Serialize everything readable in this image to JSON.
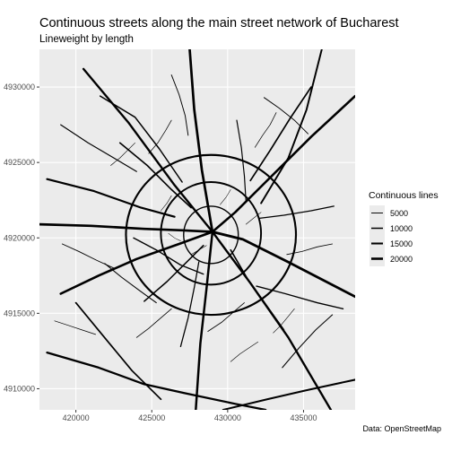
{
  "title": "Continuous streets along the main street network of Bucharest",
  "subtitle": "Lineweight by length",
  "caption": "Data: OpenStreetMap",
  "legend": {
    "title": "Continuous lines",
    "entries": [
      {
        "label": "5000",
        "value": 5000
      },
      {
        "label": "10000",
        "value": 10000
      },
      {
        "label": "15000",
        "value": 15000
      },
      {
        "label": "20000",
        "value": 20000
      }
    ]
  },
  "colors": {
    "panel_background": "#ebebeb",
    "grid_major": "#ffffff",
    "line": "#000000",
    "axis_text": "#4d4d4d"
  },
  "chart_data": {
    "type": "line",
    "x_ticks": [
      420000,
      425000,
      430000,
      435000
    ],
    "x_tick_labels": [
      "420000",
      "425000",
      "430000",
      "435000"
    ],
    "y_ticks": [
      4910000,
      4915000,
      4920000,
      4925000,
      4930000
    ],
    "y_tick_labels": [
      "4910000",
      "4915000",
      "4920000",
      "4925000",
      "4930000"
    ],
    "xlim": [
      417600,
      438400
    ],
    "ylim": [
      4908600,
      4932500
    ],
    "grid": true,
    "legend_position": "right",
    "series_lines": [
      {
        "length": 21000,
        "points": [
          [
            417600,
            4920900
          ],
          [
            421000,
            4920800
          ],
          [
            424500,
            4920600
          ],
          [
            427000,
            4920500
          ],
          [
            429000,
            4920400
          ]
        ]
      },
      {
        "length": 22000,
        "points": [
          [
            429000,
            4920400
          ],
          [
            431000,
            4919900
          ],
          [
            434000,
            4918400
          ],
          [
            438400,
            4916100
          ]
        ]
      },
      {
        "length": 20000,
        "points": [
          [
            419000,
            4916300
          ],
          [
            421500,
            4917500
          ],
          [
            424000,
            4918600
          ],
          [
            426800,
            4919600
          ],
          [
            429000,
            4920400
          ]
        ]
      },
      {
        "length": 20000,
        "points": [
          [
            429000,
            4920400
          ],
          [
            430500,
            4921700
          ],
          [
            432500,
            4923700
          ],
          [
            435500,
            4926700
          ],
          [
            438400,
            4929400
          ]
        ]
      },
      {
        "length": 21000,
        "points": [
          [
            427500,
            4932500
          ],
          [
            427800,
            4928500
          ],
          [
            428300,
            4924500
          ],
          [
            429000,
            4920400
          ]
        ]
      },
      {
        "length": 19000,
        "points": [
          [
            429000,
            4920400
          ],
          [
            428600,
            4916600
          ],
          [
            428200,
            4913000
          ],
          [
            427900,
            4908600
          ]
        ]
      },
      {
        "length": 18000,
        "points": [
          [
            420500,
            4931200
          ],
          [
            423500,
            4927600
          ],
          [
            426500,
            4923500
          ],
          [
            429000,
            4920400
          ]
        ]
      },
      {
        "length": 18000,
        "points": [
          [
            429000,
            4920400
          ],
          [
            431500,
            4917000
          ],
          [
            434000,
            4913400
          ],
          [
            436800,
            4908600
          ]
        ]
      },
      {
        "length": 14000,
        "points": [
          [
            436200,
            4932500
          ],
          [
            435200,
            4928500
          ],
          [
            434000,
            4925300
          ],
          [
            432200,
            4922300
          ]
        ]
      },
      {
        "length": 16000,
        "points": [
          [
            418100,
            4923900
          ],
          [
            421200,
            4923100
          ],
          [
            424300,
            4922000
          ],
          [
            426500,
            4921400
          ]
        ]
      },
      {
        "length": 17000,
        "points": [
          [
            418100,
            4912400
          ],
          [
            421500,
            4911400
          ],
          [
            424500,
            4910300
          ],
          [
            427200,
            4909700
          ],
          [
            430500,
            4909000
          ],
          [
            432500,
            4908600
          ]
        ]
      },
      {
        "length": 15000,
        "points": [
          [
            429700,
            4908600
          ],
          [
            432600,
            4909300
          ],
          [
            435200,
            4909900
          ],
          [
            438400,
            4910600
          ]
        ]
      },
      {
        "length": 12000,
        "points": [
          [
            420000,
            4915700
          ],
          [
            421800,
            4913500
          ],
          [
            423700,
            4911200
          ],
          [
            425600,
            4909300
          ]
        ]
      },
      {
        "length": 12000,
        "points": [
          [
            431500,
            4923800
          ],
          [
            432800,
            4925800
          ],
          [
            434100,
            4927900
          ],
          [
            435500,
            4930000
          ]
        ]
      },
      {
        "length": 11000,
        "points": [
          [
            422900,
            4926300
          ],
          [
            424700,
            4924800
          ],
          [
            426300,
            4923200
          ],
          [
            427600,
            4922000
          ]
        ]
      },
      {
        "length": 11000,
        "points": [
          [
            430200,
            4919200
          ],
          [
            431300,
            4917300
          ],
          [
            432500,
            4915600
          ],
          [
            433700,
            4913900
          ]
        ]
      },
      {
        "length": 10000,
        "points": [
          [
            424500,
            4915800
          ],
          [
            426000,
            4917100
          ],
          [
            427300,
            4918400
          ],
          [
            428400,
            4919500
          ]
        ]
      },
      {
        "length": 10000,
        "points": [
          [
            421600,
            4929400
          ],
          [
            423900,
            4928000
          ],
          [
            425500,
            4925900
          ],
          [
            427000,
            4923700
          ]
        ]
      },
      {
        "length": 9000,
        "points": [
          [
            431900,
            4916800
          ],
          [
            433800,
            4916300
          ],
          [
            435900,
            4915700
          ],
          [
            437600,
            4915300
          ]
        ]
      },
      {
        "length": 9000,
        "points": [
          [
            423800,
            4920000
          ],
          [
            425300,
            4919200
          ],
          [
            426900,
            4918200
          ],
          [
            428400,
            4917600
          ]
        ]
      },
      {
        "length": 8000,
        "points": [
          [
            432100,
            4921300
          ],
          [
            433700,
            4921500
          ],
          [
            435500,
            4921800
          ],
          [
            437000,
            4922100
          ]
        ]
      },
      {
        "length": 8000,
        "points": [
          [
            426900,
            4912800
          ],
          [
            427400,
            4914700
          ],
          [
            427800,
            4916700
          ],
          [
            428100,
            4918400
          ]
        ]
      },
      {
        "length": 7000,
        "points": [
          [
            419000,
            4927500
          ],
          [
            420800,
            4926300
          ],
          [
            422500,
            4925300
          ],
          [
            424000,
            4924400
          ]
        ]
      },
      {
        "length": 7000,
        "points": [
          [
            430600,
            4927800
          ],
          [
            430900,
            4926000
          ],
          [
            431100,
            4924100
          ],
          [
            431200,
            4922500
          ]
        ]
      },
      {
        "length": 6000,
        "points": [
          [
            433600,
            4911400
          ],
          [
            434700,
            4912700
          ],
          [
            435800,
            4913900
          ],
          [
            436900,
            4914900
          ]
        ]
      },
      {
        "length": 6000,
        "points": [
          [
            421900,
            4918300
          ],
          [
            423000,
            4917400
          ],
          [
            424200,
            4916500
          ],
          [
            425300,
            4915700
          ]
        ]
      },
      {
        "length": 5000,
        "points": [
          [
            426300,
            4930800
          ],
          [
            426800,
            4929500
          ],
          [
            427200,
            4928100
          ],
          [
            427400,
            4926800
          ]
        ]
      },
      {
        "length": 5000,
        "points": [
          [
            432400,
            4929300
          ],
          [
            433400,
            4928600
          ],
          [
            434400,
            4927800
          ],
          [
            435300,
            4926900
          ]
        ]
      },
      {
        "length": 5000,
        "points": [
          [
            419100,
            4919600
          ],
          [
            420200,
            4919100
          ],
          [
            421400,
            4918500
          ],
          [
            422500,
            4918000
          ]
        ]
      },
      {
        "length": 4000,
        "points": [
          [
            433900,
            4918900
          ],
          [
            434900,
            4919100
          ],
          [
            435900,
            4919400
          ],
          [
            436900,
            4919600
          ]
        ]
      },
      {
        "length": 4000,
        "points": [
          [
            424000,
            4913400
          ],
          [
            424800,
            4914000
          ],
          [
            425600,
            4914700
          ],
          [
            426300,
            4915300
          ]
        ]
      },
      {
        "length": 4000,
        "points": [
          [
            428700,
            4913800
          ],
          [
            429600,
            4914400
          ],
          [
            430400,
            4915100
          ],
          [
            431100,
            4915700
          ]
        ]
      },
      {
        "length": 3000,
        "points": [
          [
            424800,
            4925600
          ],
          [
            425400,
            4926300
          ],
          [
            425900,
            4927100
          ],
          [
            426300,
            4927800
          ]
        ]
      },
      {
        "length": 3000,
        "points": [
          [
            431800,
            4926000
          ],
          [
            432300,
            4926800
          ],
          [
            432800,
            4927500
          ],
          [
            433200,
            4928300
          ]
        ]
      },
      {
        "length": 3000,
        "points": [
          [
            418600,
            4914500
          ],
          [
            419500,
            4914200
          ],
          [
            420400,
            4913900
          ],
          [
            421300,
            4913600
          ]
        ]
      },
      {
        "length": 2000,
        "points": [
          [
            433000,
            4913700
          ],
          [
            433500,
            4914200
          ],
          [
            434000,
            4914800
          ],
          [
            434400,
            4915300
          ]
        ]
      },
      {
        "length": 2000,
        "points": [
          [
            422300,
            4924800
          ],
          [
            422900,
            4925300
          ],
          [
            423400,
            4925800
          ],
          [
            423900,
            4926300
          ]
        ]
      },
      {
        "length": 2000,
        "points": [
          [
            430200,
            4911800
          ],
          [
            430800,
            4912300
          ],
          [
            431400,
            4912700
          ],
          [
            432000,
            4913100
          ]
        ]
      },
      {
        "length": 1500,
        "points": [
          [
            425600,
            4921800
          ],
          [
            426000,
            4922300
          ],
          [
            426300,
            4922800
          ]
        ]
      },
      {
        "length": 1500,
        "points": [
          [
            431200,
            4920900
          ],
          [
            431700,
            4921300
          ],
          [
            432200,
            4921700
          ]
        ]
      },
      {
        "length": 1500,
        "points": [
          [
            427600,
            4918900
          ],
          [
            428100,
            4919200
          ],
          [
            428600,
            4919500
          ]
        ]
      },
      {
        "length": 1000,
        "points": [
          [
            429500,
            4922200
          ],
          [
            429900,
            4922700
          ],
          [
            430200,
            4923200
          ]
        ]
      },
      {
        "length": 1000,
        "points": [
          [
            426100,
            4920300
          ],
          [
            426500,
            4920000
          ],
          [
            426900,
            4919800
          ]
        ]
      }
    ],
    "ring_lines": [
      {
        "length": 9000,
        "center": [
          428900,
          4920200
        ],
        "rx": 1800,
        "ry": 1900
      },
      {
        "length": 14000,
        "center": [
          428900,
          4920300
        ],
        "rx": 3300,
        "ry": 3400
      },
      {
        "length": 16000,
        "center": [
          428900,
          4920200
        ],
        "rx": 5600,
        "ry": 5300
      }
    ]
  }
}
